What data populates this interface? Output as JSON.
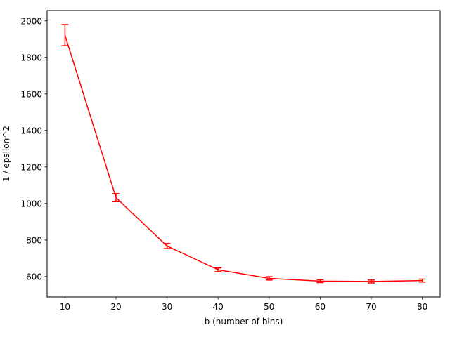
{
  "chart_data": {
    "type": "line",
    "title": "",
    "xlabel": "b (number of bins)",
    "ylabel": "1 / epsilon^2",
    "x": [
      10,
      20,
      30,
      40,
      50,
      60,
      70,
      80
    ],
    "series": [
      {
        "values": [
          1922,
          1032,
          767,
          637,
          590,
          575,
          573,
          578
        ],
        "errors": [
          58,
          22,
          14,
          10,
          9,
          8,
          8,
          8
        ],
        "color": "#ff0000"
      }
    ],
    "xlim": [
      6.5,
      83.5
    ],
    "ylim": [
      488,
      2057
    ],
    "xticks": [
      "10",
      "20",
      "30",
      "40",
      "50",
      "60",
      "70",
      "80"
    ],
    "yticks": [
      "600",
      "800",
      "1000",
      "1200",
      "1400",
      "1600",
      "1800",
      "2000"
    ],
    "grid": false,
    "legend": "none"
  }
}
